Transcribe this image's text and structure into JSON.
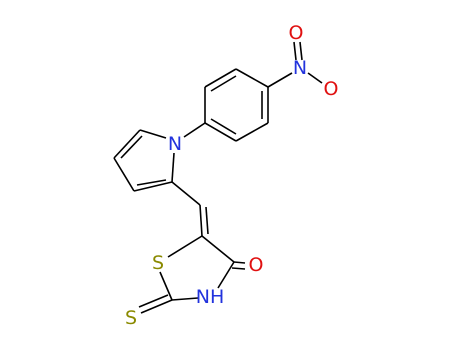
{
  "atoms": [
    {
      "label": "O"
    },
    {
      "label": "N"
    },
    {
      "label": "O"
    },
    {
      "label": "N"
    },
    {
      "label": "S"
    },
    {
      "label": "O"
    },
    {
      "label": "NH"
    },
    {
      "label": "S"
    }
  ]
}
